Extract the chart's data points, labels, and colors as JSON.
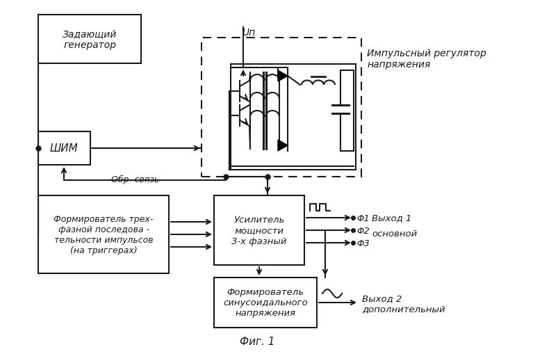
{
  "bg_color": "#ffffff",
  "line_color": "#1a1a1a",
  "fig_label": "Фиг. 1",
  "zadaushiy_text": "Задающий\nгенератор",
  "shim_text": "ШИМ",
  "form3_text": "Формирователь трех-\nфазной последова -\nтельности импульсов\n(на триггерах)",
  "usilitel_text": "Усилитель\nмощности\n3-х фазный",
  "formsin_text": "Формирователь\nсинусоидального\nнапряжения",
  "impulsniy_text": "Импульсный регулятор\nнапряжения",
  "up_text": "Uп",
  "obr_text": "Обр. связь",
  "phi1_text": "Φ1",
  "phi2_text": "Φ2",
  "phi3_text": "Φ3",
  "vyhod1_text": "Выход 1",
  "osnovnoy_text": "основной",
  "vyhod2_text": "Выход 2",
  "dopoln_text": "дополнительный"
}
